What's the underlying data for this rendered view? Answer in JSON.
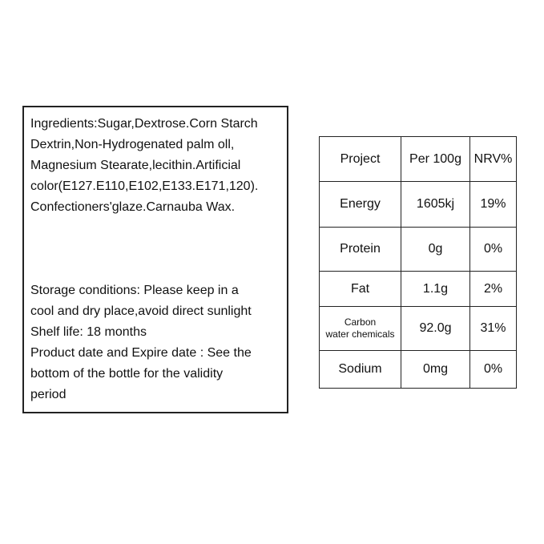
{
  "ingredients": {
    "lines": [
      "Ingredients:Sugar,Dextrose.Corn Starch",
      "Dextrin,Non-Hydrogenated palm oll,",
      "Magnesium Stearate,lecithin.Artificial",
      "color(E127.E110,E102,E133.E171,120).",
      "Confectioners'glaze.Carnauba Wax."
    ]
  },
  "storage": {
    "lines": [
      "Storage conditions:  Please keep in a",
      "cool and dry place,avoid direct sunlight",
      "Shelf life: 18 months",
      "Product date and Expire date : See the",
      "bottom of the bottle for the validity",
      "period"
    ]
  },
  "nutrition": {
    "headers": [
      "Project",
      "Per 100g",
      "NRV%"
    ],
    "rows": [
      {
        "item": "Energy",
        "per100g": "1605kj",
        "nrv": "19%"
      },
      {
        "item": "Protein",
        "per100g": "0g",
        "nrv": "0%"
      },
      {
        "item": "Fat",
        "per100g": "1.1g",
        "nrv": "2%"
      },
      {
        "item_line1": "Carbon",
        "item_line2": "water chemicals",
        "per100g": "92.0g",
        "nrv": "31%"
      },
      {
        "item": "Sodium",
        "per100g": "0mg",
        "nrv": "0%"
      }
    ]
  }
}
